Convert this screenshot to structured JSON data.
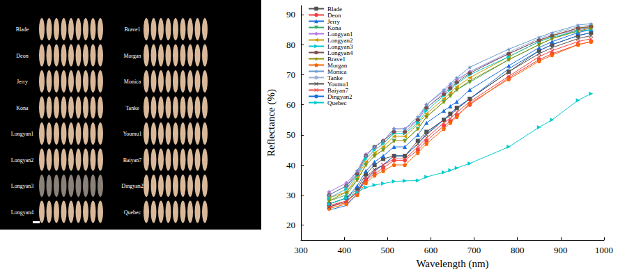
{
  "chart_data": {
    "type": "line",
    "x_label": "Wavelength (nm)",
    "y_label": "Reflectance (%)",
    "x": [
      365,
      405,
      430,
      450,
      470,
      490,
      515,
      540,
      570,
      590,
      630,
      645,
      660,
      690,
      780,
      850,
      880,
      940,
      970
    ],
    "xlim": [
      300,
      1000
    ],
    "xticks": [
      300,
      400,
      500,
      600,
      700,
      800,
      900,
      1000
    ],
    "ylim": [
      15,
      93
    ],
    "yticks": [
      20,
      30,
      40,
      50,
      60,
      70,
      80,
      90
    ],
    "grid": false,
    "legend": "upper left",
    "series": [
      {
        "name": "Blade",
        "color": "#515151",
        "marker": "square",
        "values": [
          27,
          29,
          32,
          37,
          40,
          42,
          43,
          43,
          48,
          51,
          55,
          57,
          59,
          62,
          71,
          78,
          80,
          83,
          84
        ]
      },
      {
        "name": "Deon",
        "color": "#F14040",
        "marker": "circle",
        "values": [
          26,
          27.5,
          31,
          35,
          37,
          39,
          41.5,
          41.5,
          45,
          48,
          53,
          54.5,
          56.5,
          60,
          69,
          75,
          77,
          80,
          81
        ]
      },
      {
        "name": "Jerry",
        "color": "#1A6FDF",
        "marker": "triangle",
        "values": [
          27,
          29,
          33,
          38,
          41,
          43,
          46,
          46,
          50,
          54,
          58,
          59.5,
          61,
          65,
          73,
          79,
          81,
          84,
          85
        ]
      },
      {
        "name": "Kona",
        "color": "#37AD6B",
        "marker": "triangle-down",
        "values": [
          28,
          30,
          35,
          40,
          43,
          45,
          48,
          48,
          52,
          56,
          61,
          63,
          65,
          67.5,
          75,
          80,
          82,
          85,
          86
        ]
      },
      {
        "name": "Longyan1",
        "color": "#B177DE",
        "marker": "diamond",
        "values": [
          31,
          34,
          38,
          43.5,
          46,
          48,
          52,
          52,
          55,
          60,
          64.5,
          66.5,
          68.5,
          71,
          77,
          81.5,
          83,
          85,
          85.5
        ]
      },
      {
        "name": "Longyan2",
        "color": "#CC9900",
        "marker": "triangle-left",
        "values": [
          29,
          31,
          36,
          41,
          44,
          46,
          49.5,
          49.5,
          53.5,
          57,
          62,
          64,
          66,
          69,
          76,
          81,
          83,
          85.5,
          86
        ]
      },
      {
        "name": "Longyan3",
        "color": "#00CBCC",
        "marker": "triangle-right",
        "values": [
          29,
          32,
          36.5,
          42,
          45,
          47,
          50.5,
          50.5,
          54,
          58,
          63,
          65,
          67,
          70,
          76,
          81,
          82.5,
          84.5,
          85
        ]
      },
      {
        "name": "Longyan4",
        "color": "#7D4E4E",
        "marker": "hexagon",
        "values": [
          30,
          33,
          37,
          43,
          46,
          48,
          51,
          51,
          55,
          59,
          63.5,
          65.5,
          67.5,
          70.5,
          77,
          81.5,
          83,
          85.5,
          86
        ]
      },
      {
        "name": "Brave1",
        "color": "#8E8E00",
        "marker": "star",
        "values": [
          28,
          31,
          35,
          40,
          43,
          45,
          48,
          48,
          52,
          56,
          61,
          63,
          65,
          68,
          75,
          80,
          82,
          84.5,
          85.5
        ]
      },
      {
        "name": "Morgan",
        "color": "#FB6501",
        "marker": "pentagon",
        "values": [
          25.5,
          27,
          30,
          34,
          36.5,
          38,
          40,
          40,
          44,
          47,
          52,
          54,
          56,
          60.5,
          68.5,
          74.5,
          76.5,
          80,
          81
        ]
      },
      {
        "name": "Monica",
        "color": "#6699CC",
        "marker": "star",
        "values": [
          30,
          33,
          38,
          43,
          46,
          48,
          52,
          52,
          56,
          60,
          65,
          67,
          69,
          72.5,
          78.5,
          82.5,
          84,
          86.5,
          87
        ]
      },
      {
        "name": "Tanke",
        "color": "#9DB4D6",
        "marker": "none",
        "values": [
          29,
          32,
          37,
          42,
          45,
          47,
          51,
          51,
          55,
          59,
          64,
          66,
          68,
          71,
          77.5,
          82,
          83.5,
          86,
          86.5
        ]
      },
      {
        "name": "Youmu1",
        "color": "#515151",
        "marker": "x",
        "values": [
          26,
          28,
          31,
          36,
          38.5,
          40,
          43,
          43,
          47,
          50,
          55,
          56.5,
          58.5,
          62,
          71,
          77,
          79,
          82,
          83
        ]
      },
      {
        "name": "Baiyan7",
        "color": "#F14040",
        "marker": "x",
        "values": [
          26.5,
          28,
          31,
          35.5,
          38,
          40,
          42,
          42,
          46,
          49,
          54,
          55.5,
          57.5,
          61,
          69.5,
          76,
          78,
          81,
          82
        ]
      },
      {
        "name": "Dingyan2",
        "color": "#1A6FDF",
        "marker": "none",
        "values": [
          25,
          26.5,
          30.5,
          35,
          38,
          40,
          43,
          43,
          47,
          50.5,
          55,
          57,
          59,
          62,
          72,
          78,
          80,
          83,
          84
        ]
      },
      {
        "name": "Quebec",
        "color": "#00CBCC",
        "marker": "triangle-right",
        "values": [
          27,
          29,
          31,
          32.5,
          33.3,
          33.8,
          34.5,
          34.7,
          34.8,
          36,
          37.5,
          38.2,
          39,
          40.5,
          46,
          52.5,
          55,
          61.5,
          63.7
        ]
      }
    ]
  },
  "photo_labels": {
    "left_column": [
      "Blade",
      "Deon",
      "Jerry",
      "Kona",
      "Longyan1",
      "Longyan2",
      "Longyan3",
      "Longyan4"
    ],
    "right_column": [
      "Brave1",
      "Morgan",
      "Monica",
      "Tanke",
      "Youmu1",
      "Baiyan7",
      "Dingyan2",
      "Quebec"
    ]
  }
}
